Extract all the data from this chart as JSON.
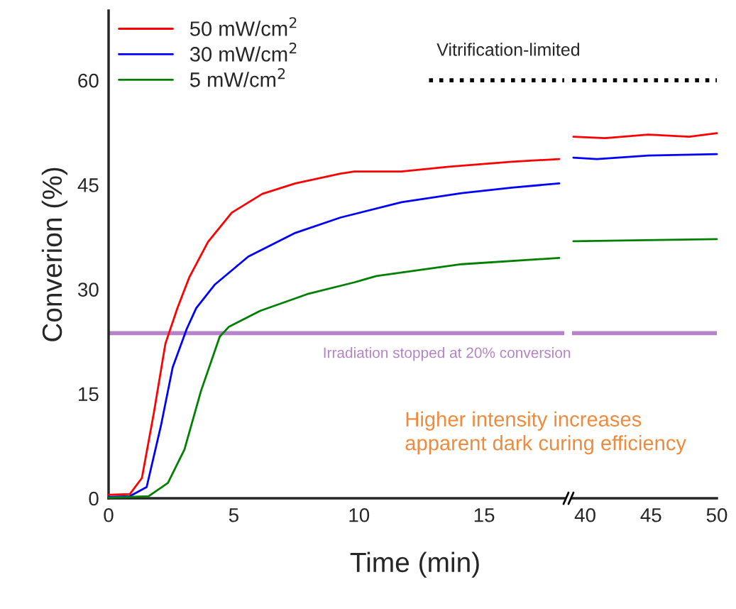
{
  "chart_data": [
    {
      "type": "line",
      "xlabel": "Time (min)",
      "ylabel": "Converion (%)",
      "xlim": [
        0,
        18.2
      ],
      "xticks": [
        0,
        5,
        10,
        15
      ],
      "ylim": [
        0,
        70
      ],
      "yticks": [
        0,
        15,
        30,
        45,
        60
      ],
      "grid": false,
      "legend": "top left",
      "marker": "none",
      "line_style": "solid",
      "series": [
        {
          "name": "50 mW/cm$^{2}$",
          "color": "#ff0000",
          "x": [
            0,
            0.85,
            1.33,
            1.8,
            2.27,
            2.75,
            3.22,
            3.97,
            4.92,
            6.14,
            7.46,
            9.26,
            9.82,
            11.7,
            13.6,
            16.1,
            18.0
          ],
          "values": [
            0.5,
            0.6,
            2.9,
            12.1,
            22.2,
            27.3,
            31.7,
            36.8,
            41.0,
            43.7,
            45.2,
            46.6,
            46.9,
            46.9,
            47.6,
            48.3,
            48.7
          ]
        },
        {
          "name": "30 mW/cm$^{2}$",
          "color": "#0000ff",
          "x": [
            0,
            0.85,
            1.52,
            2.09,
            2.56,
            3.12,
            3.5,
            4.25,
            5.58,
            7.46,
            9.26,
            11.7,
            14.1,
            16.1,
            18.0
          ],
          "values": [
            0.2,
            0.3,
            1.6,
            10.4,
            18.8,
            24.3,
            27.3,
            30.7,
            34.7,
            38.1,
            40.3,
            42.5,
            43.8,
            44.6,
            45.2
          ]
        },
        {
          "name": "5 mW/cm$^{2}$",
          "color": "#008000",
          "x": [
            0,
            1.6,
            2.37,
            3.03,
            3.69,
            4.44,
            4.8,
            6.05,
            7.93,
            9.82,
            10.7,
            14.1,
            18.0
          ],
          "values": [
            0.1,
            0.3,
            2.2,
            7.0,
            15.4,
            23.2,
            24.6,
            26.9,
            29.3,
            31.0,
            31.9,
            33.6,
            34.5
          ]
        },
        {
          "color": "#000000",
          "line_style": "dotted",
          "x": [
            12.8,
            18.2
          ],
          "values": [
            60,
            60
          ]
        }
      ],
      "ref_lines": [
        {
          "axis": "y",
          "value": 23.7,
          "label": "Irradiation stopped at 20% conversion",
          "color": "#b583c8"
        }
      ],
      "annotations": [
        "Vitrification-limited",
        "Higher intensity increases\napparent dark curing efficiency"
      ]
    },
    {
      "type": "line",
      "xlim": [
        39,
        50
      ],
      "xticks": [
        40,
        45,
        50
      ],
      "ylim": [
        0,
        60
      ],
      "yticks": [
        0,
        15,
        30,
        45,
        60
      ],
      "tick_labels": "x",
      "grid": false,
      "marker": "none",
      "line_style": "solid",
      "series": [
        {
          "color": "#ff0000",
          "x": [
            39.1,
            41.5,
            44.8,
            47.9,
            50.0
          ],
          "values": [
            51.9,
            51.7,
            52.2,
            51.9,
            52.4
          ]
        },
        {
          "color": "#0000ff",
          "x": [
            39.1,
            40.9,
            44.8,
            50.0
          ],
          "values": [
            48.9,
            48.7,
            49.2,
            49.4
          ]
        },
        {
          "color": "#008000",
          "x": [
            39.1,
            50.0
          ],
          "values": [
            36.9,
            37.2
          ]
        },
        {
          "color": "#000000",
          "line_style": "dotted",
          "x": [
            39,
            50
          ],
          "values": [
            60,
            60
          ]
        }
      ],
      "ref_lines": [
        {
          "axis": "y",
          "value": 23.7,
          "color": "#b583c8"
        }
      ]
    }
  ]
}
